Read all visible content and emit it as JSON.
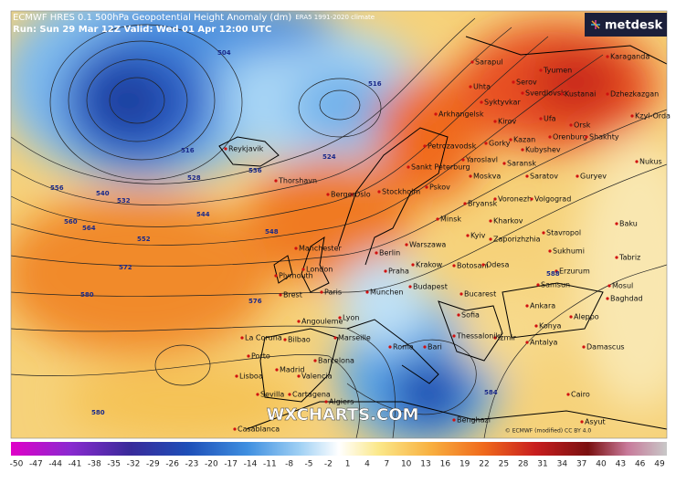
{
  "header": {
    "title": "ECMWF HRES 0.1 500hPa Geopotential Height Anomaly (dm)",
    "climate": "ERA5 1991-2020 climate",
    "run": "Run: Sun 29 Mar 12Z Valid: Wed 01 Apr 12:00 UTC"
  },
  "logo": "metdesk",
  "watermark": "WXCHARTS.COM",
  "credit": "© ECMWF (modified) CC BY 4.0",
  "cities": [
    "Reykjavik",
    "Thorshavn",
    "Arkhangelsk",
    "Petrozavodsk",
    "Sankt Peterburg",
    "Syktyvkar",
    "Uhta",
    "Sarapul",
    "Tyumen",
    "Serov",
    "Sverdlovsk",
    "Kustanai",
    "Karaganda",
    "Dzhezkazgan",
    "Kzyl-Orda",
    "Kirov",
    "Ufa",
    "Orsk",
    "Orenburg",
    "Shakhty",
    "Gorky",
    "Kazan",
    "Kubyshev",
    "Saratov",
    "Guryev",
    "Nukus",
    "Yaroslavl",
    "Saransk",
    "Moskva",
    "Bryansk",
    "Voronezh",
    "Volgograd",
    "Kharkov",
    "Minsk",
    "Pskov",
    "Stockholm",
    "Oslo",
    "Bergen",
    "Berlin",
    "Warszawa",
    "Kyiv",
    "Zaporizhzhia",
    "Stavropol",
    "Baku",
    "Sukhumi",
    "Erzurum",
    "Tabriz",
    "Mosul",
    "Baghdad",
    "Krakow",
    "Botosani",
    "Odesa",
    "Praha",
    "London",
    "Manchester",
    "Plymouth",
    "Brest",
    "Paris",
    "Munchen",
    "Budapest",
    "Bucarest",
    "Samsun",
    "Ankara",
    "Konya",
    "Aleppo",
    "Antalya",
    "Damascus",
    "Izmir",
    "Sofia",
    "Thessaloniki",
    "Roma",
    "Bari",
    "Lyon",
    "Marseille",
    "Angouleme",
    "Barcelona",
    "Bilbao",
    "La Coruna",
    "Porto",
    "Madrid",
    "Valencia",
    "Lisboa",
    "Sevilla",
    "Cartagena",
    "Algiers",
    "Casablanca",
    "Benghazi",
    "Cairo",
    "Asyut"
  ],
  "contour_labels": [
    "504",
    "516",
    "516",
    "528",
    "536",
    "524",
    "540",
    "532",
    "544",
    "548",
    "552",
    "556",
    "560",
    "564",
    "572",
    "576",
    "580",
    "580",
    "584",
    "588"
  ],
  "colorbar": [
    -50,
    -47,
    -44,
    -41,
    -38,
    -35,
    -32,
    -29,
    -26,
    -23,
    -20,
    -17,
    -14,
    -11,
    -8,
    -5,
    -2,
    1,
    4,
    7,
    10,
    13,
    16,
    19,
    22,
    25,
    28,
    31,
    34,
    37,
    40,
    43,
    46,
    49
  ]
}
